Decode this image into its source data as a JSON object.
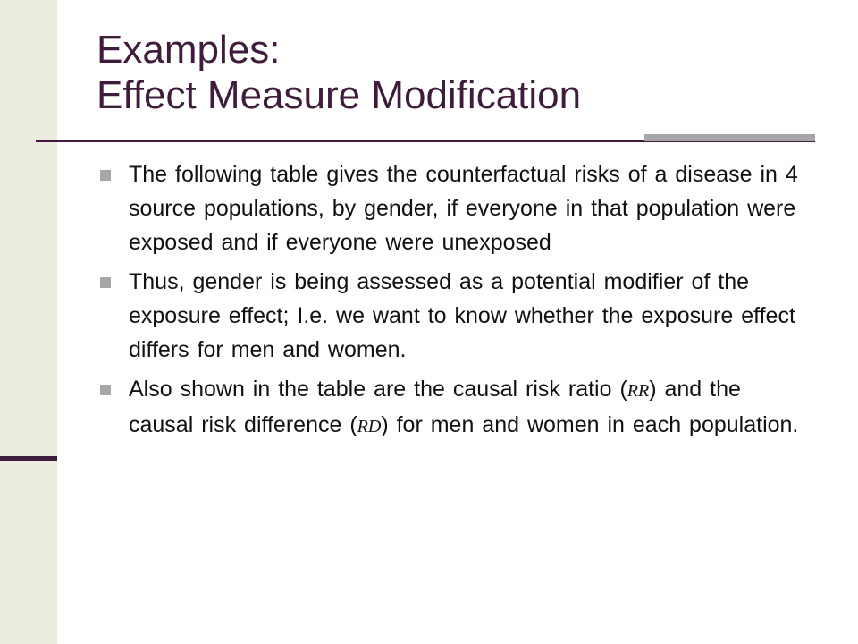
{
  "slide": {
    "title_line1": "Examples:",
    "title_line2": "Effect Measure Modification",
    "bullets": [
      {
        "text": "The following table gives the counterfactual risks of a disease in 4 source populations, by gender, if everyone in that population were exposed and if everyone were unexposed"
      },
      {
        "text": "Thus, gender is being assessed as a potential modifier of the exposure effect; I.e. we want to know whether the exposure effect differs for men and women."
      },
      {
        "text_before_rr": "Also shown in the table are the causal risk ratio (",
        "rr_symbol": "RR",
        "text_between": ") and the causal risk difference (",
        "rd_symbol": "RD",
        "text_after_rd": ") for men and women in each population."
      }
    ]
  },
  "colors": {
    "title": "#3f1c3c",
    "rule": "#3f1c3c",
    "accent_bar": "#a6a6a6",
    "side_band": "#ecebe0",
    "bullet_marker": "#a6a6a6",
    "body_text": "#111111"
  }
}
